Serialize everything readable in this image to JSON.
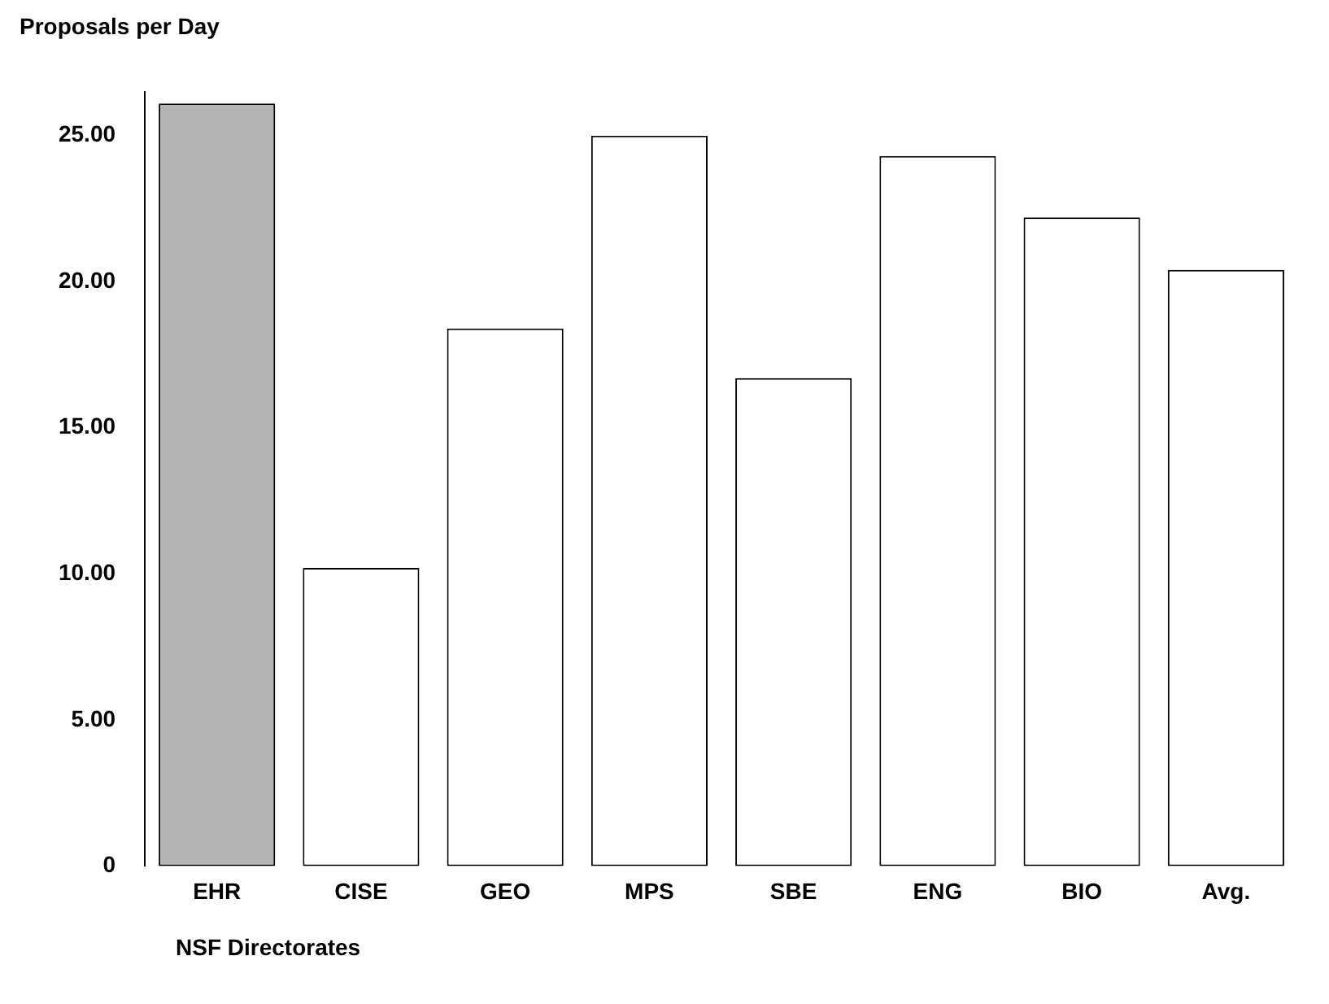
{
  "chart_data": {
    "type": "bar",
    "ylabel": "Proposals per Day",
    "xlabel": "NSF Directorates",
    "categories": [
      "EHR",
      "CISE",
      "GEO",
      "MPS",
      "SBE",
      "ENG",
      "BIO",
      "Avg."
    ],
    "values": [
      26.1,
      10.2,
      18.4,
      25.0,
      16.7,
      24.3,
      22.2,
      20.4
    ],
    "colors": [
      "#b4b4b4",
      "#ffffff",
      "#ffffff",
      "#ffffff",
      "#ffffff",
      "#ffffff",
      "#ffffff",
      "#ffffff"
    ],
    "ylim": [
      0,
      26.5
    ],
    "yticks": [
      {
        "value": 0,
        "label": "0"
      },
      {
        "value": 5,
        "label": "5.00"
      },
      {
        "value": 10,
        "label": "10.00"
      },
      {
        "value": 15,
        "label": "15.00"
      },
      {
        "value": 20,
        "label": "20.00"
      },
      {
        "value": 25,
        "label": "25.00"
      }
    ],
    "grid": false,
    "legend": false
  }
}
